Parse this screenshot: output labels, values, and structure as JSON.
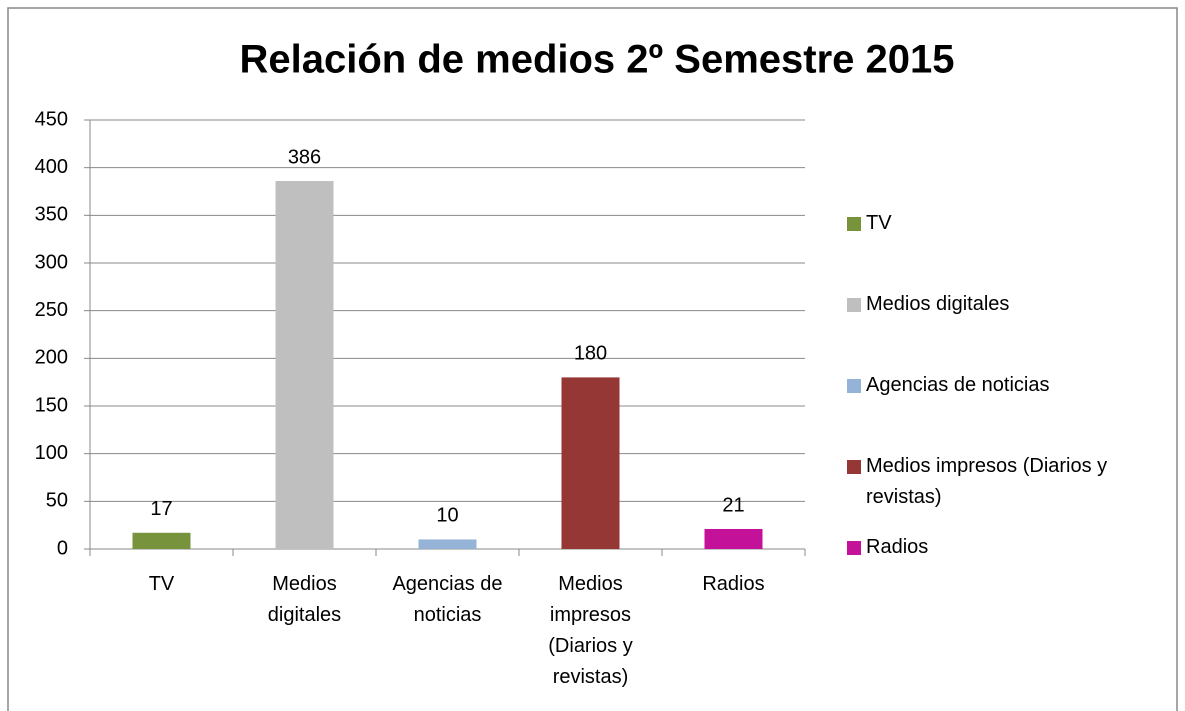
{
  "chart_data": {
    "type": "bar",
    "title": "Relación de medios 2º Semestre 2015",
    "categories": [
      "TV",
      "Medios digitales",
      "Agencias de noticias",
      "Medios impresos (Diarios y revistas)",
      "Radios"
    ],
    "values": [
      17,
      386,
      10,
      180,
      21
    ],
    "colors": [
      "#77933c",
      "#bfbfbf",
      "#95b3d7",
      "#953735",
      "#c4119a"
    ],
    "ylim": [
      0,
      450
    ],
    "yticks": [
      0,
      50,
      100,
      150,
      200,
      250,
      300,
      350,
      400,
      450
    ],
    "grid": true,
    "legend": "right"
  }
}
